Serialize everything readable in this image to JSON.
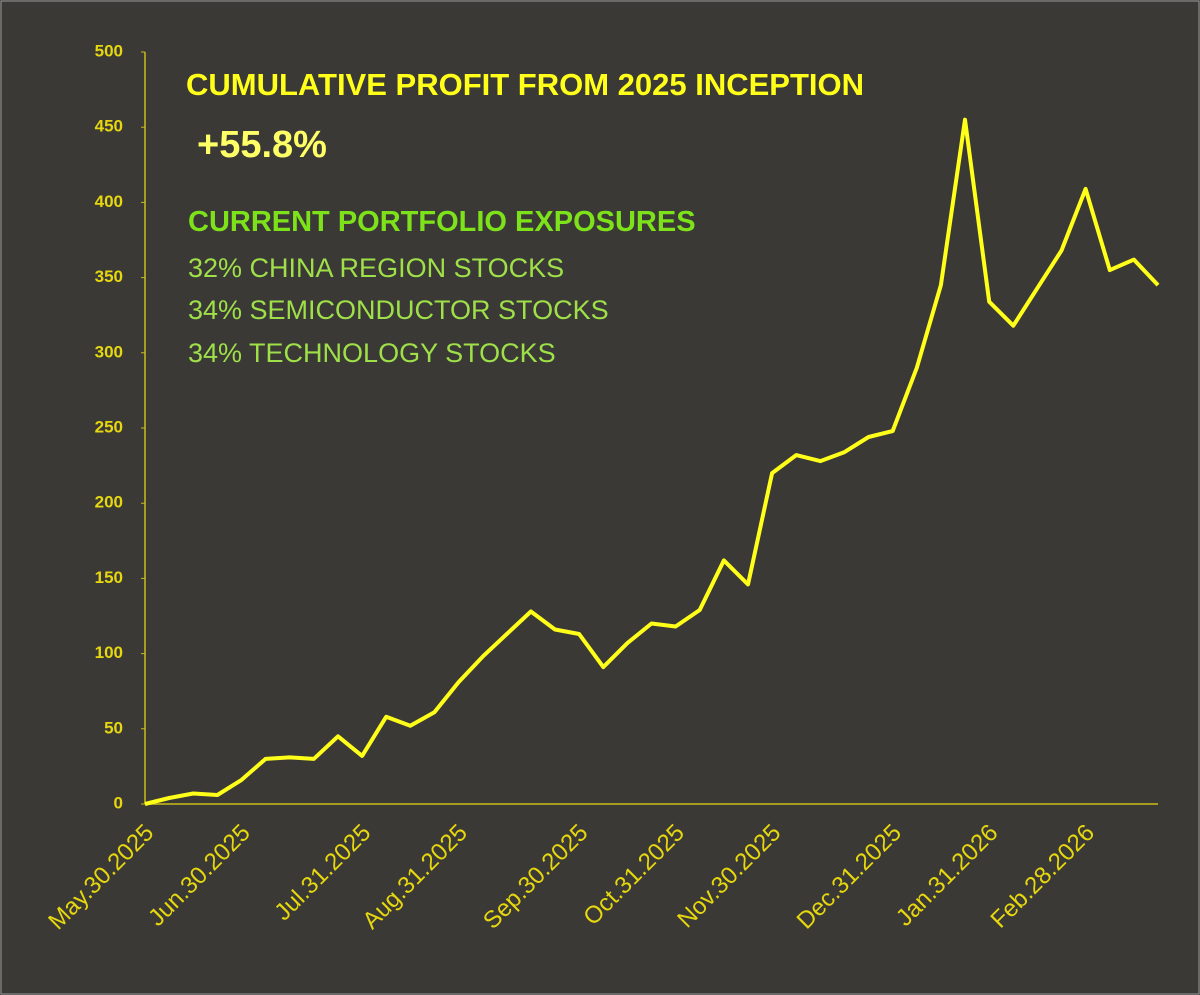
{
  "chart_data": {
    "type": "line",
    "title": "CUMULATIVE PROFIT FROM 2025 INCEPTION",
    "subtitle": "+55.8%",
    "annotations": [
      "CURRENT PORTFOLIO EXPOSURES",
      "32% CHINA REGION STOCKS",
      "34% SEMICONDUCTOR STOCKS",
      "34% TECHNOLOGY STOCKS"
    ],
    "categories": [
      "May.30.2025",
      null,
      null,
      null,
      "Jun.30.2025",
      null,
      null,
      null,
      null,
      "Jul.31.2025",
      null,
      null,
      null,
      "Aug.31.2025",
      null,
      null,
      null,
      null,
      "Sep.30.2025",
      null,
      null,
      null,
      "Oct.31.2025",
      null,
      null,
      null,
      "Nov.30.2025",
      null,
      null,
      null,
      null,
      "Dec.31.2025",
      null,
      null,
      null,
      "Jan.31.2026",
      null,
      null,
      null,
      "Feb.28.2026",
      null,
      null,
      null
    ],
    "series": [
      {
        "name": "Cumulative profit",
        "color": "#ffff1a",
        "values": [
          0,
          4,
          7,
          6,
          16,
          30,
          31,
          30,
          45,
          32,
          58,
          52,
          61,
          81,
          98,
          113,
          128,
          116,
          113,
          91,
          107,
          120,
          118,
          129,
          162,
          146,
          220,
          232,
          228,
          234,
          244,
          248,
          290,
          345,
          455,
          334,
          318,
          343,
          368,
          409,
          355,
          362,
          345
        ]
      }
    ],
    "ylim": [
      0,
      500
    ],
    "yticks": [
      0,
      50,
      100,
      150,
      200,
      250,
      300,
      350,
      400,
      450,
      500
    ],
    "grid": false
  }
}
